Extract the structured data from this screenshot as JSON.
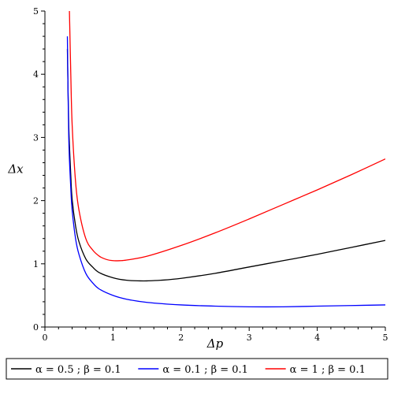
{
  "chart_data": {
    "type": "line",
    "xlabel": "Δp",
    "ylabel": "Δx",
    "xlim": [
      0,
      5
    ],
    "ylim": [
      0,
      5
    ],
    "x_ticks": [
      "0",
      "1",
      "2",
      "3",
      "4",
      "5"
    ],
    "y_ticks": [
      "0",
      "1",
      "2",
      "3",
      "4",
      "5"
    ],
    "grid": false,
    "legend_position": "bottom",
    "series": [
      {
        "name": "α = 0.5 ; β = 0.1",
        "color": "#000000",
        "x": [
          0.33,
          0.35,
          0.38,
          0.4,
          0.45,
          0.5,
          0.6,
          0.7,
          0.8,
          1.0,
          1.2,
          1.4,
          1.5,
          1.7,
          2.0,
          2.5,
          3.0,
          3.5,
          4.0,
          4.5,
          5.0
        ],
        "y": [
          4.4,
          3.2,
          2.4,
          2.02,
          1.6,
          1.35,
          1.08,
          0.95,
          0.86,
          0.78,
          0.74,
          0.73,
          0.73,
          0.74,
          0.77,
          0.85,
          0.95,
          1.05,
          1.15,
          1.26,
          1.37
        ]
      },
      {
        "name": "α = 0.1 ; β = 0.1",
        "color": "#0000ff",
        "x": [
          0.33,
          0.35,
          0.38,
          0.4,
          0.45,
          0.5,
          0.6,
          0.7,
          0.8,
          1.0,
          1.2,
          1.5,
          2.0,
          2.5,
          3.0,
          3.5,
          4.0,
          4.5,
          5.0
        ],
        "y": [
          4.6,
          3.0,
          2.2,
          1.85,
          1.4,
          1.15,
          0.85,
          0.7,
          0.6,
          0.5,
          0.44,
          0.39,
          0.35,
          0.33,
          0.32,
          0.32,
          0.33,
          0.34,
          0.35
        ]
      },
      {
        "name": "α = 1 ; β = 0.1",
        "color": "#ff0000",
        "x": [
          0.36,
          0.38,
          0.4,
          0.45,
          0.5,
          0.6,
          0.7,
          0.8,
          0.9,
          1.0,
          1.1,
          1.2,
          1.5,
          2.0,
          2.5,
          3.0,
          3.5,
          4.0,
          4.5,
          5.0
        ],
        "y": [
          5.0,
          4.0,
          3.2,
          2.3,
          1.85,
          1.4,
          1.22,
          1.12,
          1.07,
          1.05,
          1.05,
          1.06,
          1.12,
          1.29,
          1.49,
          1.71,
          1.94,
          2.17,
          2.41,
          2.66
        ]
      }
    ]
  }
}
